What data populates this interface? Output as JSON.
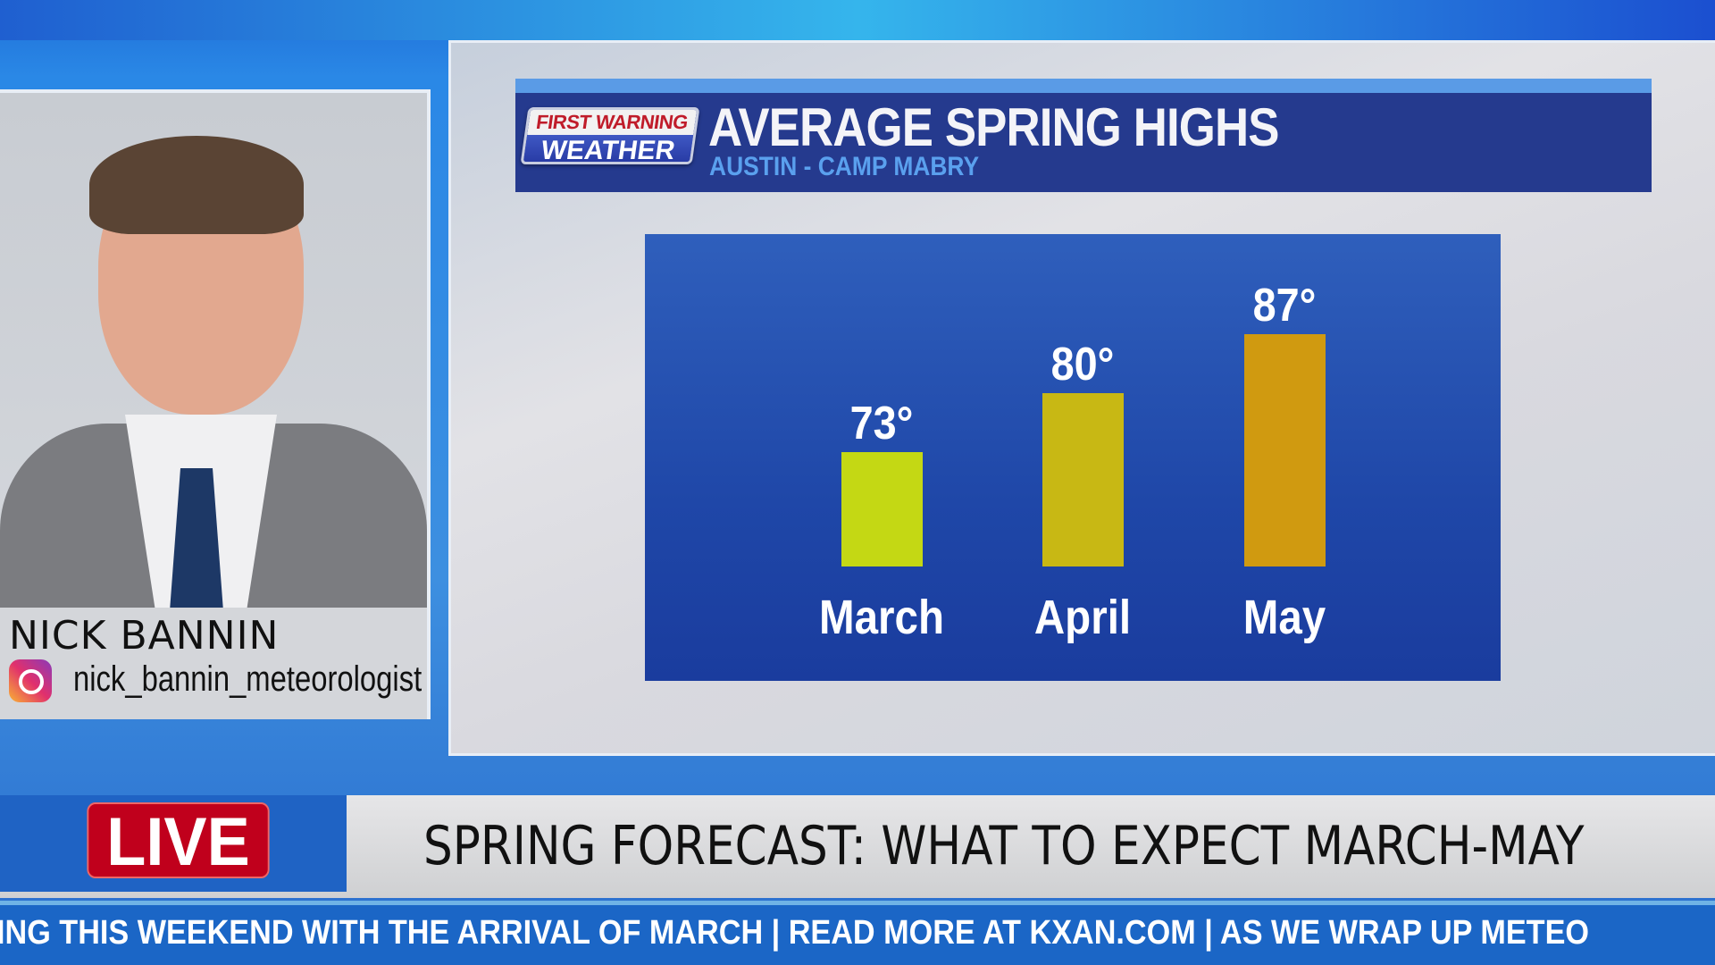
{
  "graphic": {
    "logo_line1": "FIRST WARNING",
    "logo_line2": "WEATHER",
    "title": "AVERAGE SPRING HIGHS",
    "subtitle": "AUSTIN - CAMP MABRY"
  },
  "chart_data": {
    "type": "bar",
    "title": "AVERAGE SPRING HIGHS",
    "subtitle": "AUSTIN - CAMP MABRY",
    "categories": [
      "March",
      "April",
      "May"
    ],
    "values": [
      73,
      80,
      87
    ],
    "value_labels": [
      "73°",
      "80°",
      "87°"
    ],
    "colors": [
      "#c4d814",
      "#c8b814",
      "#d09a10"
    ],
    "ylim": [
      60,
      90
    ]
  },
  "presenter": {
    "name": "NICK BANNIN",
    "handle": "nick_bannin_meteorologist",
    "social_icon": "instagram-icon"
  },
  "lower_third": {
    "live": "LIVE",
    "headline": "SPRING FORECAST: WHAT TO EXPECT MARCH-MAY"
  },
  "ticker": {
    "text": "ING THIS WEEKEND WITH THE ARRIVAL OF MARCH  |  READ MORE AT KXAN.COM  |  AS WE WRAP UP METEO"
  }
}
